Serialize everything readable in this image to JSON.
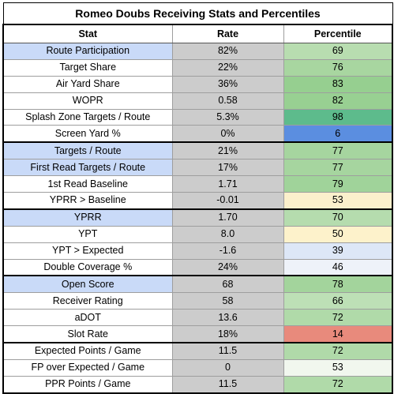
{
  "title": "Romeo Doubs Receiving Stats and Percentiles",
  "headers": {
    "stat": "Stat",
    "rate": "Rate",
    "percentile": "Percentile"
  },
  "colors": {
    "highlight_stat": "#c9daf8",
    "rate_bg": "#cccccc"
  },
  "rows": [
    {
      "stat": "Route Participation",
      "rate": "82%",
      "percentile": "69",
      "hl": true,
      "pct_color": "#b8ddb0"
    },
    {
      "stat": "Target Share",
      "rate": "22%",
      "percentile": "76",
      "hl": false,
      "pct_color": "#a8d6a0"
    },
    {
      "stat": "Air Yard Share",
      "rate": "36%",
      "percentile": "83",
      "hl": false,
      "pct_color": "#96cf90"
    },
    {
      "stat": "WOPR",
      "rate": "0.58",
      "percentile": "82",
      "hl": false,
      "pct_color": "#98d092"
    },
    {
      "stat": "Splash Zone Targets / Route",
      "rate": "5.3%",
      "percentile": "98",
      "hl": false,
      "pct_color": "#5dbb8c"
    },
    {
      "stat": "Screen Yard %",
      "rate": "0%",
      "percentile": "6",
      "hl": false,
      "pct_color": "#5b8ee0"
    },
    {
      "stat": "Targets / Route",
      "rate": "21%",
      "percentile": "77",
      "hl": true,
      "pct_color": "#a6d59f",
      "sep": true
    },
    {
      "stat": "First Read Targets / Route",
      "rate": "17%",
      "percentile": "77",
      "hl": true,
      "pct_color": "#a6d59f"
    },
    {
      "stat": "1st Read Baseline",
      "rate": "1.71",
      "percentile": "79",
      "hl": false,
      "pct_color": "#a0d39a"
    },
    {
      "stat": "YPRR > Baseline",
      "rate": "-0.01",
      "percentile": "53",
      "hl": false,
      "pct_color": "#fbf0cc"
    },
    {
      "stat": "YPRR",
      "rate": "1.70",
      "percentile": "70",
      "hl": true,
      "pct_color": "#b5dcae",
      "sep": true
    },
    {
      "stat": "YPT",
      "rate": "8.0",
      "percentile": "50",
      "hl": false,
      "pct_color": "#fdf2cb"
    },
    {
      "stat": "YPT > Expected",
      "rate": "-1.6",
      "percentile": "39",
      "hl": false,
      "pct_color": "#dde7f7"
    },
    {
      "stat": "Double Coverage %",
      "rate": "24%",
      "percentile": "46",
      "hl": false,
      "pct_color": "#eef2f9"
    },
    {
      "stat": "Open Score",
      "rate": "68",
      "percentile": "78",
      "hl": true,
      "pct_color": "#a3d49c",
      "sep": true
    },
    {
      "stat": "Receiver Rating",
      "rate": "58",
      "percentile": "66",
      "hl": false,
      "pct_color": "#bde0b6"
    },
    {
      "stat": "aDOT",
      "rate": "13.6",
      "percentile": "72",
      "hl": false,
      "pct_color": "#b0daa9"
    },
    {
      "stat": "Slot Rate",
      "rate": "18%",
      "percentile": "14",
      "hl": false,
      "pct_color": "#e88a7c"
    },
    {
      "stat": "Expected Points / Game",
      "rate": "11.5",
      "percentile": "72",
      "hl": false,
      "pct_color": "#b0daa9",
      "sep": true
    },
    {
      "stat": "FP over Expected / Game",
      "rate": "0",
      "percentile": "53",
      "hl": false,
      "pct_color": "#f1f7ee"
    },
    {
      "stat": "PPR Points / Game",
      "rate": "11.5",
      "percentile": "72",
      "hl": false,
      "pct_color": "#b0daa9"
    }
  ]
}
